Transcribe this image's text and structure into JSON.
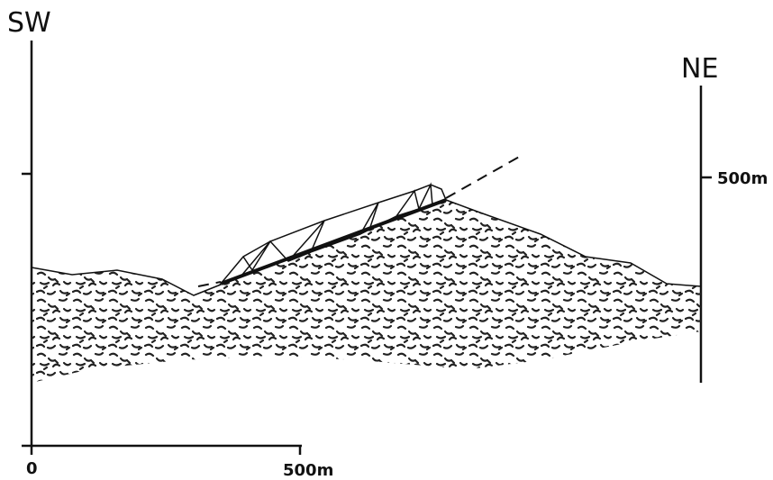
{
  "labels": {
    "left_end": "SW",
    "right_end": "NE"
  },
  "vertical_scale": {
    "label": "500m"
  },
  "horizontal_scale": {
    "start": "0",
    "end": "500m"
  }
}
